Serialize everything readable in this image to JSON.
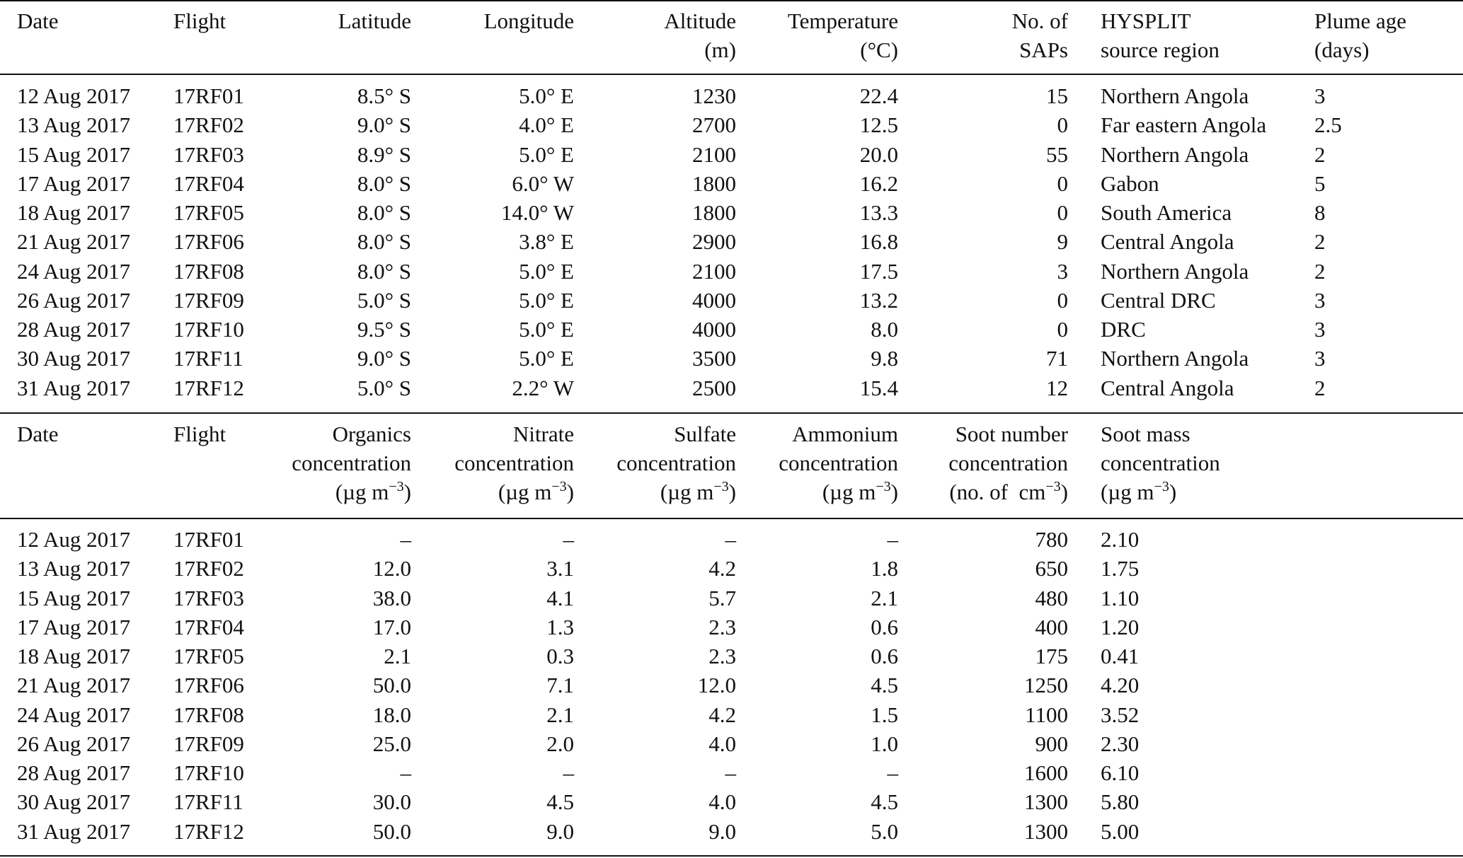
{
  "tables": [
    {
      "header": [
        [
          "Date"
        ],
        [
          "Flight"
        ],
        [
          "Latitude"
        ],
        [
          "Longitude"
        ],
        [
          "Altitude",
          "(m)"
        ],
        [
          "Temperature",
          "(°C)"
        ],
        [
          "No. of",
          "SAPs"
        ],
        [
          "HYSPLIT",
          "source region"
        ],
        [
          "Plume age",
          "(days)"
        ]
      ],
      "rows": [
        [
          "12 Aug 2017",
          "17RF01",
          "8.5° S",
          "5.0° E",
          "1230",
          "22.4",
          "15",
          "Northern Angola",
          "3"
        ],
        [
          "13 Aug 2017",
          "17RF02",
          "9.0° S",
          "4.0° E",
          "2700",
          "12.5",
          "0",
          "Far eastern Angola",
          "2.5"
        ],
        [
          "15 Aug 2017",
          "17RF03",
          "8.9° S",
          "5.0° E",
          "2100",
          "20.0",
          "55",
          "Northern Angola",
          "2"
        ],
        [
          "17 Aug 2017",
          "17RF04",
          "8.0° S",
          "6.0° W",
          "1800",
          "16.2",
          "0",
          "Gabon",
          "5"
        ],
        [
          "18 Aug 2017",
          "17RF05",
          "8.0° S",
          "14.0° W",
          "1800",
          "13.3",
          "0",
          "South America",
          "8"
        ],
        [
          "21 Aug 2017",
          "17RF06",
          "8.0° S",
          "3.8° E",
          "2900",
          "16.8",
          "9",
          "Central Angola",
          "2"
        ],
        [
          "24 Aug 2017",
          "17RF08",
          "8.0° S",
          "5.0° E",
          "2100",
          "17.5",
          "3",
          "Northern Angola",
          "2"
        ],
        [
          "26 Aug 2017",
          "17RF09",
          "5.0° S",
          "5.0° E",
          "4000",
          "13.2",
          "0",
          "Central DRC",
          "3"
        ],
        [
          "28 Aug 2017",
          "17RF10",
          "9.5° S",
          "5.0° E",
          "4000",
          "8.0",
          "0",
          "DRC",
          "3"
        ],
        [
          "30 Aug 2017",
          "17RF11",
          "9.0° S",
          "5.0° E",
          "3500",
          "9.8",
          "71",
          "Northern Angola",
          "3"
        ],
        [
          "31 Aug 2017",
          "17RF12",
          "5.0° S",
          "2.2° W",
          "2500",
          "15.4",
          "12",
          "Central Angola",
          "2"
        ]
      ]
    },
    {
      "header": [
        [
          "Date"
        ],
        [
          "Flight"
        ],
        [
          "Organics",
          "concentration",
          {
            "pre": "(µg m",
            "sup": "−3",
            "post": ")"
          }
        ],
        [
          "Nitrate",
          "concentration",
          {
            "pre": "(µg m",
            "sup": "−3",
            "post": ")"
          }
        ],
        [
          "Sulfate",
          "concentration",
          {
            "pre": "(µg m",
            "sup": "−3",
            "post": ")"
          }
        ],
        [
          "Ammonium",
          "concentration",
          {
            "pre": "(µg m",
            "sup": "−3",
            "post": ")"
          }
        ],
        [
          "Soot number",
          "concentration",
          {
            "pre": "(no. of  cm",
            "sup": "−3",
            "post": ")"
          }
        ],
        [
          "Soot mass",
          "concentration",
          {
            "pre": "(µg m",
            "sup": "−3",
            "post": ")"
          }
        ]
      ],
      "rows": [
        [
          "12 Aug 2017",
          "17RF01",
          "–",
          "–",
          "–",
          "–",
          "780",
          "2.10"
        ],
        [
          "13 Aug 2017",
          "17RF02",
          "12.0",
          "3.1",
          "4.2",
          "1.8",
          "650",
          "1.75"
        ],
        [
          "15 Aug 2017",
          "17RF03",
          "38.0",
          "4.1",
          "5.7",
          "2.1",
          "480",
          "1.10"
        ],
        [
          "17 Aug 2017",
          "17RF04",
          "17.0",
          "1.3",
          "2.3",
          "0.6",
          "400",
          "1.20"
        ],
        [
          "18 Aug 2017",
          "17RF05",
          "2.1",
          "0.3",
          "2.3",
          "0.6",
          "175",
          "0.41"
        ],
        [
          "21 Aug 2017",
          "17RF06",
          "50.0",
          "7.1",
          "12.0",
          "4.5",
          "1250",
          "4.20"
        ],
        [
          "24 Aug 2017",
          "17RF08",
          "18.0",
          "2.1",
          "4.2",
          "1.5",
          "1100",
          "3.52"
        ],
        [
          "26 Aug 2017",
          "17RF09",
          "25.0",
          "2.0",
          "4.0",
          "1.0",
          "900",
          "2.30"
        ],
        [
          "28 Aug 2017",
          "17RF10",
          "–",
          "–",
          "–",
          "–",
          "1600",
          "6.10"
        ],
        [
          "30 Aug 2017",
          "17RF11",
          "30.0",
          "4.5",
          "4.0",
          "4.5",
          "1300",
          "5.80"
        ],
        [
          "31 Aug 2017",
          "17RF12",
          "50.0",
          "9.0",
          "9.0",
          "5.0",
          "1300",
          "5.00"
        ]
      ]
    }
  ]
}
